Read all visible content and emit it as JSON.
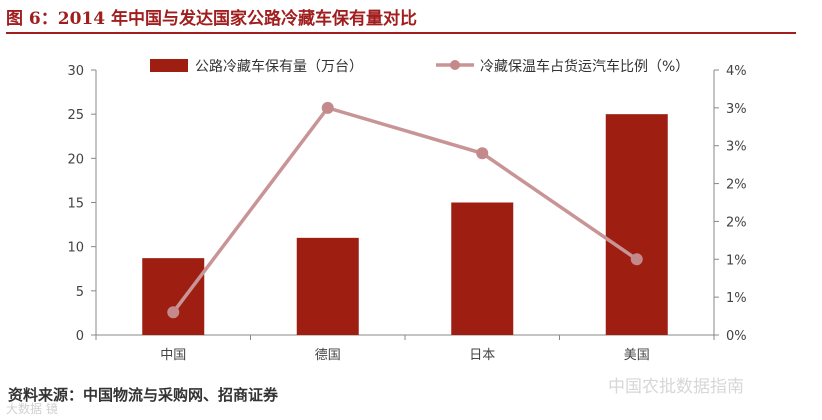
{
  "figure": {
    "title": "图 6：2014 年中国与发达国家公路冷藏车保有量对比",
    "source": "资料来源：中国物流与采购网、招商证券",
    "watermark_right": "中国农批数据指南",
    "watermark_left": "大数据 镜"
  },
  "colors": {
    "title": "#a01e1e",
    "bar": "#9e1f12",
    "line": "#c89496",
    "line_marker": "#c4898b"
  },
  "chart_data": {
    "type": "bar",
    "categories": [
      "中国",
      "德国",
      "日本",
      "美国"
    ],
    "series": [
      {
        "name": "公路冷藏车保有量（万台）",
        "type": "bar",
        "axis": "left",
        "values": [
          8.7,
          11,
          15,
          25
        ]
      },
      {
        "name": "冷藏保温车占货运汽车比例（%）",
        "type": "line",
        "axis": "right",
        "values": [
          0.3,
          3.0,
          2.4,
          1.0
        ]
      }
    ],
    "ylim": [
      0,
      30
    ],
    "yticks": [
      "0",
      "5",
      "10",
      "15",
      "20",
      "25",
      "30"
    ],
    "ylim_right": [
      0,
      3.5
    ],
    "yticks_right": [
      "0%",
      "1%",
      "1%",
      "2%",
      "2%",
      "3%",
      "3%",
      "4%"
    ],
    "legend_position": "top",
    "grid": false
  }
}
